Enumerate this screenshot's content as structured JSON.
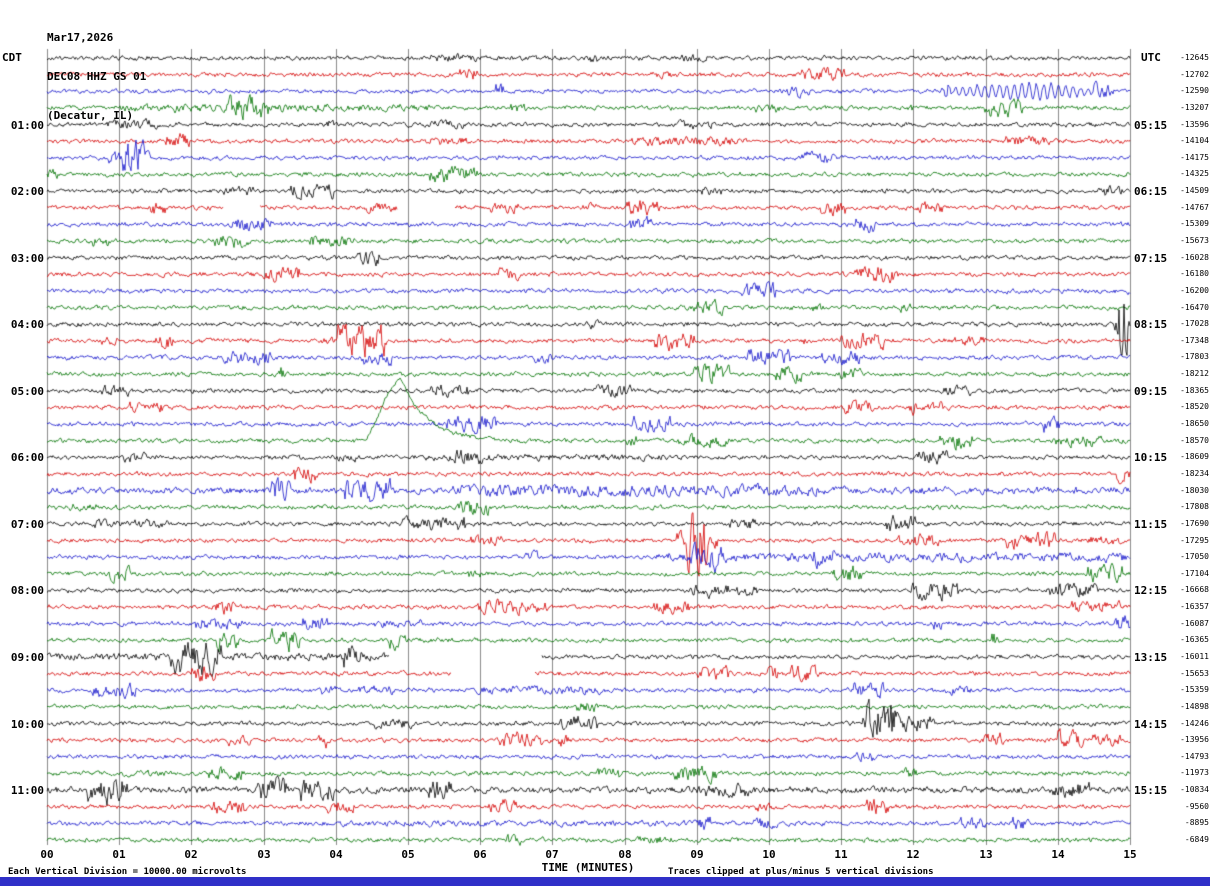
{
  "header": {
    "date": "Mar17,2026",
    "station": "DEC08 HHZ GS 01",
    "location": "(Decatur, IL)"
  },
  "axes": {
    "left_title": "CDT",
    "right_title": "UTC",
    "x_title": "TIME (MINUTES)",
    "x_ticks": [
      "00",
      "01",
      "02",
      "03",
      "04",
      "05",
      "06",
      "07",
      "08",
      "09",
      "10",
      "11",
      "12",
      "13",
      "14",
      "15"
    ],
    "left_labels": [
      "01:00",
      "02:00",
      "03:00",
      "04:00",
      "05:00",
      "06:00",
      "07:00",
      "08:00",
      "09:00",
      "10:00",
      "11:00"
    ],
    "right_labels": [
      "05:15",
      "06:15",
      "07:15",
      "08:15",
      "09:15",
      "10:15",
      "11:15",
      "12:15",
      "13:15",
      "14:15",
      "15:15"
    ]
  },
  "footer": {
    "left": "Each Vertical Division = 10000.00 microvolts",
    "right": "Traces clipped at plus/minus 5 vertical divisions",
    "bar_color": "#3030c8"
  },
  "chart_data": {
    "type": "line",
    "subtype": "seismogram-helicorder",
    "title": "DEC08 HHZ GS 01 (Decatur, IL) Mar17,2026",
    "xlabel": "TIME (MINUTES)",
    "x_range": [
      0,
      15
    ],
    "minutes_per_row": 15,
    "rows": 48,
    "rows_per_hour": 4,
    "row_colors_cycle": [
      "#000000",
      "#d40000",
      "#1414cc",
      "#007200"
    ],
    "grid_color": "#8a8a8a",
    "background": "#ffffff",
    "vertical_division_microvolts": 10000.0,
    "clip_divisions": 5,
    "right_values": [
      "-12645",
      "-12702",
      "-12590",
      "-13207",
      "-13596",
      "-14104",
      "-14175",
      "-14325",
      "-14509",
      "-14767",
      "-15309",
      "-15673",
      "-16028",
      "-16180",
      "-16200",
      "-16470",
      "-17028",
      "-17348",
      "-17803",
      "-18212",
      "-18365",
      "-18520",
      "-18650",
      "-18570",
      "-18609",
      "-18234",
      "-18030",
      "-17808",
      "-17690",
      "-17295",
      "-17050",
      "-17104",
      "-16668",
      "-16357",
      "-16087",
      "-16365",
      "-16011",
      "-15653",
      "-15359",
      "-14898",
      "-14246",
      "-13956",
      "-14793",
      "-11973",
      "-10834",
      "-9560",
      "-8895",
      "-6849"
    ],
    "events": [
      {
        "row": 2,
        "type": "oscillation",
        "start": 12.3,
        "end": 14.75,
        "amplitude": 8,
        "cycles": 24
      },
      {
        "row": 3,
        "type": "noisy",
        "start": 1.0,
        "end": 5.3,
        "mult": 1.9
      },
      {
        "row": 5,
        "type": "noisy",
        "start": 8.1,
        "end": 9.7,
        "mult": 2.4
      },
      {
        "row": 6,
        "type": "spike",
        "start": 1.05,
        "end": 1.35,
        "mult": 1.8
      },
      {
        "row": 9,
        "type": "gap",
        "start": 2.45,
        "end": 2.95
      },
      {
        "row": 9,
        "type": "gap",
        "start": 4.85,
        "end": 5.65
      },
      {
        "row": 10,
        "type": "spike",
        "start": 8.05,
        "end": 8.4,
        "mult": 1.7
      },
      {
        "row": 10,
        "type": "spike",
        "start": 11.15,
        "end": 11.5,
        "mult": 1.6
      },
      {
        "row": 12,
        "type": "spike",
        "start": 4.3,
        "end": 4.6,
        "mult": 1.8
      },
      {
        "row": 15,
        "type": "spike",
        "start": 8.95,
        "end": 9.35,
        "mult": 1.7
      },
      {
        "row": 16,
        "type": "spike",
        "start": 14.75,
        "end": 15.0,
        "mult": 2.2
      },
      {
        "row": 17,
        "type": "noisy",
        "start": 3.8,
        "end": 4.7,
        "mult": 2.0
      },
      {
        "row": 18,
        "type": "spike",
        "start": 6.75,
        "end": 7.0,
        "mult": 1.6
      },
      {
        "row": 19,
        "type": "spike",
        "start": 8.95,
        "end": 9.5,
        "mult": 2.2
      },
      {
        "row": 23,
        "type": "bump",
        "start": 4.35,
        "peak": 4.9,
        "end": 6.4,
        "height": 62
      },
      {
        "row": 24,
        "type": "noisy",
        "start": 5.2,
        "end": 8.6,
        "mult": 1.6
      },
      {
        "row": 26,
        "type": "noisy",
        "start": 0.0,
        "end": 5.6,
        "mult": 1.5
      },
      {
        "row": 26,
        "type": "noisy",
        "start": 5.6,
        "end": 10.7,
        "mult": 3.0
      },
      {
        "row": 26,
        "type": "noisy",
        "start": 10.7,
        "end": 15.0,
        "mult": 1.8
      },
      {
        "row": 28,
        "type": "noisy",
        "start": 0.6,
        "end": 1.7,
        "mult": 2.0
      },
      {
        "row": 29,
        "type": "spike",
        "start": 8.7,
        "end": 9.15,
        "mult": 1.8
      },
      {
        "row": 30,
        "type": "noisy",
        "start": 8.4,
        "end": 15.0,
        "mult": 2.2
      },
      {
        "row": 31,
        "type": "spike",
        "start": 14.4,
        "end": 14.9,
        "mult": 2.0
      },
      {
        "row": 33,
        "type": "spike",
        "start": 2.3,
        "end": 2.65,
        "mult": 1.7
      },
      {
        "row": 35,
        "type": "spike",
        "start": 2.35,
        "end": 2.7,
        "mult": 2.4
      },
      {
        "row": 35,
        "type": "spike",
        "start": 3.1,
        "end": 3.5,
        "mult": 2.6
      },
      {
        "row": 36,
        "type": "noisy",
        "start": 0.0,
        "end": 4.7,
        "mult": 1.8
      },
      {
        "row": 36,
        "type": "gap",
        "start": 4.75,
        "end": 6.85
      },
      {
        "row": 37,
        "type": "gap",
        "start": 5.6,
        "end": 6.75
      },
      {
        "row": 38,
        "type": "noisy",
        "start": 5.9,
        "end": 7.7,
        "mult": 2.0
      },
      {
        "row": 40,
        "type": "spike",
        "start": 7.1,
        "end": 7.65,
        "mult": 1.8
      },
      {
        "row": 40,
        "type": "spike",
        "start": 11.3,
        "end": 12.3,
        "mult": 1.8
      },
      {
        "row": 41,
        "type": "spike",
        "start": 14.0,
        "end": 14.35,
        "mult": 2.0
      },
      {
        "row": 44,
        "type": "noisy",
        "start": 0.0,
        "end": 15.0,
        "mult": 1.6
      },
      {
        "row": 45,
        "type": "spike",
        "start": 6.1,
        "end": 6.5,
        "mult": 1.8
      },
      {
        "row": 46,
        "type": "noisy",
        "start": 4.0,
        "end": 9.0,
        "mult": 1.5
      }
    ]
  }
}
